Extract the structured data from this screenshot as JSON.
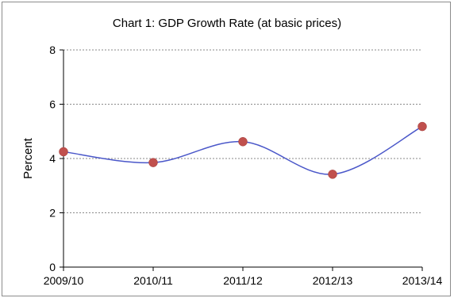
{
  "chart_data": {
    "type": "line",
    "title": "Chart 1: GDP  Growth Rate (at basic prices)",
    "xlabel": "",
    "ylabel": "Percent",
    "categories": [
      "2009/10",
      "2010/11",
      "2011/12",
      "2012/13",
      "2013/14"
    ],
    "series": [
      {
        "values": [
          4.25,
          3.85,
          4.62,
          3.42,
          5.18
        ]
      }
    ],
    "ylim": [
      0,
      8
    ],
    "yticks": [
      0,
      2,
      4,
      6,
      8
    ],
    "grid": true,
    "line_color": "#4a57c9",
    "marker_color": "#c0504d",
    "smooth": true
  }
}
